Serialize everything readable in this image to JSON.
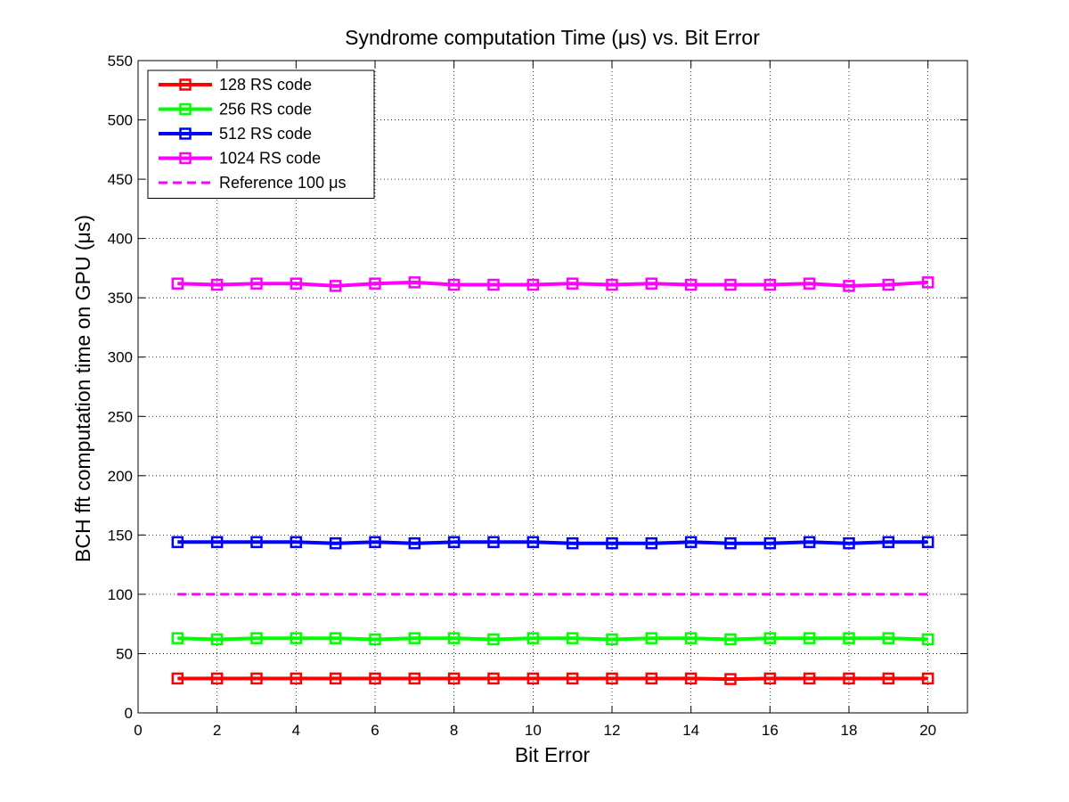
{
  "chart_data": {
    "type": "line",
    "title": "Syndrome computation Time (μs) vs. Bit Error",
    "xlabel": "Bit Error",
    "ylabel": "BCH fft computation time on GPU (μs)",
    "xlim": [
      0,
      21
    ],
    "ylim": [
      0,
      550
    ],
    "xticks": [
      0,
      2,
      4,
      6,
      8,
      10,
      12,
      14,
      16,
      18,
      20
    ],
    "yticks": [
      0,
      50,
      100,
      150,
      200,
      250,
      300,
      350,
      400,
      450,
      500,
      550
    ],
    "grid": true,
    "legend_position": "top-left",
    "x": [
      1,
      2,
      3,
      4,
      5,
      6,
      7,
      8,
      9,
      10,
      11,
      12,
      13,
      14,
      15,
      16,
      17,
      18,
      19,
      20
    ],
    "series": [
      {
        "name": "128 RS code",
        "color": "#ff0000",
        "marker": "square",
        "line": "solid",
        "values": [
          29,
          29,
          29,
          29,
          29,
          29,
          29,
          29,
          29,
          29,
          29,
          29,
          29,
          29,
          28.5,
          29,
          29,
          29,
          29,
          29
        ]
      },
      {
        "name": "256 RS code",
        "color": "#00ff00",
        "marker": "square",
        "line": "solid",
        "values": [
          63,
          62,
          63,
          63,
          63,
          62,
          63,
          63,
          62,
          63,
          63,
          62,
          63,
          63,
          62,
          63,
          63,
          63,
          63,
          62
        ]
      },
      {
        "name": "512 RS code",
        "color": "#0000ff",
        "marker": "square",
        "line": "solid",
        "values": [
          144,
          144,
          144,
          144,
          143,
          144,
          143,
          144,
          144,
          144,
          143,
          143,
          143,
          144,
          143,
          143,
          144,
          143,
          144,
          144
        ]
      },
      {
        "name": "1024 RS code",
        "color": "#ff00ff",
        "marker": "square",
        "line": "solid",
        "values": [
          362,
          361,
          362,
          362,
          360,
          362,
          363,
          361,
          361,
          361,
          362,
          361,
          362,
          361,
          361,
          361,
          362,
          360,
          361,
          363
        ]
      },
      {
        "name": "Reference 100 μs",
        "color": "#ff00ff",
        "marker": "none",
        "line": "dashed",
        "values": [
          100,
          100,
          100,
          100,
          100,
          100,
          100,
          100,
          100,
          100,
          100,
          100,
          100,
          100,
          100,
          100,
          100,
          100,
          100,
          100
        ]
      }
    ]
  }
}
